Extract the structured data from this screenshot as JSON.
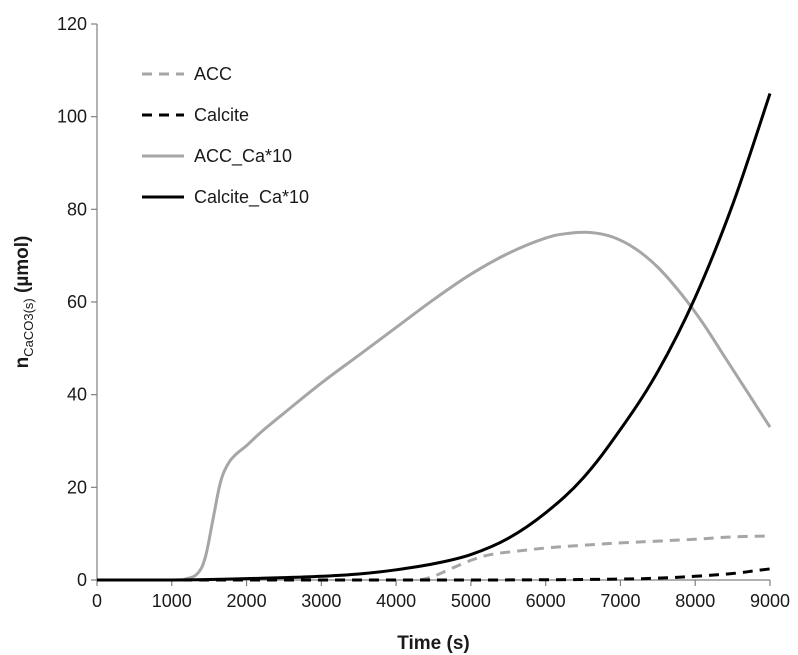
{
  "chart_data": {
    "type": "line",
    "xlabel": "Time (s)",
    "ylabel": {
      "main": "n",
      "subscript": "CaCO3(s)",
      "suffix": " (µmol)"
    },
    "xlim": [
      0,
      9000
    ],
    "ylim": [
      0,
      120
    ],
    "xticks": [
      0,
      1000,
      2000,
      3000,
      4000,
      5000,
      6000,
      7000,
      8000,
      9000
    ],
    "yticks": [
      0,
      20,
      40,
      60,
      80,
      100,
      120
    ],
    "grid": false,
    "legend": "top-left",
    "series": [
      {
        "name": "ACC",
        "color": "#a6a6a6",
        "dash": "dashed",
        "x": [
          0,
          1000,
          2000,
          3000,
          4000,
          4300,
          4500,
          4700,
          4900,
          5100,
          5300,
          5600,
          6000,
          6500,
          7000,
          7500,
          8000,
          8500,
          9000
        ],
        "y": [
          0,
          0,
          0,
          0,
          0,
          0,
          0.8,
          2.2,
          3.6,
          4.8,
          5.6,
          6.2,
          6.9,
          7.5,
          8.0,
          8.4,
          8.8,
          9.3,
          9.5
        ]
      },
      {
        "name": "Calcite",
        "color": "#000000",
        "dash": "dashed",
        "x": [
          0,
          1000,
          2000,
          3000,
          4000,
          5000,
          6000,
          7000,
          7500,
          8000,
          8500,
          8800,
          9000
        ],
        "y": [
          0,
          0,
          0,
          0,
          0,
          0,
          0.05,
          0.2,
          0.4,
          0.8,
          1.4,
          2.0,
          2.4
        ]
      },
      {
        "name": "ACC_Ca*10",
        "color": "#a6a6a6",
        "dash": "solid",
        "x": [
          0,
          1000,
          1200,
          1350,
          1450,
          1550,
          1650,
          1750,
          1850,
          2000,
          2200,
          2500,
          3000,
          3500,
          4000,
          4500,
          5000,
          5500,
          6000,
          6300,
          6600,
          6900,
          7200,
          7500,
          7800,
          8100,
          8400,
          8700,
          9000
        ],
        "y": [
          0,
          0,
          0.3,
          1.5,
          5,
          13,
          21,
          25,
          27,
          29,
          32,
          36,
          42.5,
          48.5,
          54.5,
          60.5,
          66,
          70.5,
          73.8,
          74.8,
          75,
          74,
          71.5,
          67.5,
          62,
          55.5,
          48,
          40.5,
          33
        ]
      },
      {
        "name": "Calcite_Ca*10",
        "color": "#000000",
        "dash": "solid",
        "x": [
          0,
          1000,
          1500,
          2000,
          2500,
          3000,
          3500,
          4000,
          4500,
          5000,
          5500,
          6000,
          6500,
          7000,
          7500,
          8000,
          8500,
          9000
        ],
        "y": [
          0,
          0,
          0.1,
          0.3,
          0.5,
          0.8,
          1.3,
          2.2,
          3.5,
          5.5,
          9,
          14.5,
          22,
          32.5,
          45,
          61,
          81,
          105
        ]
      }
    ]
  }
}
